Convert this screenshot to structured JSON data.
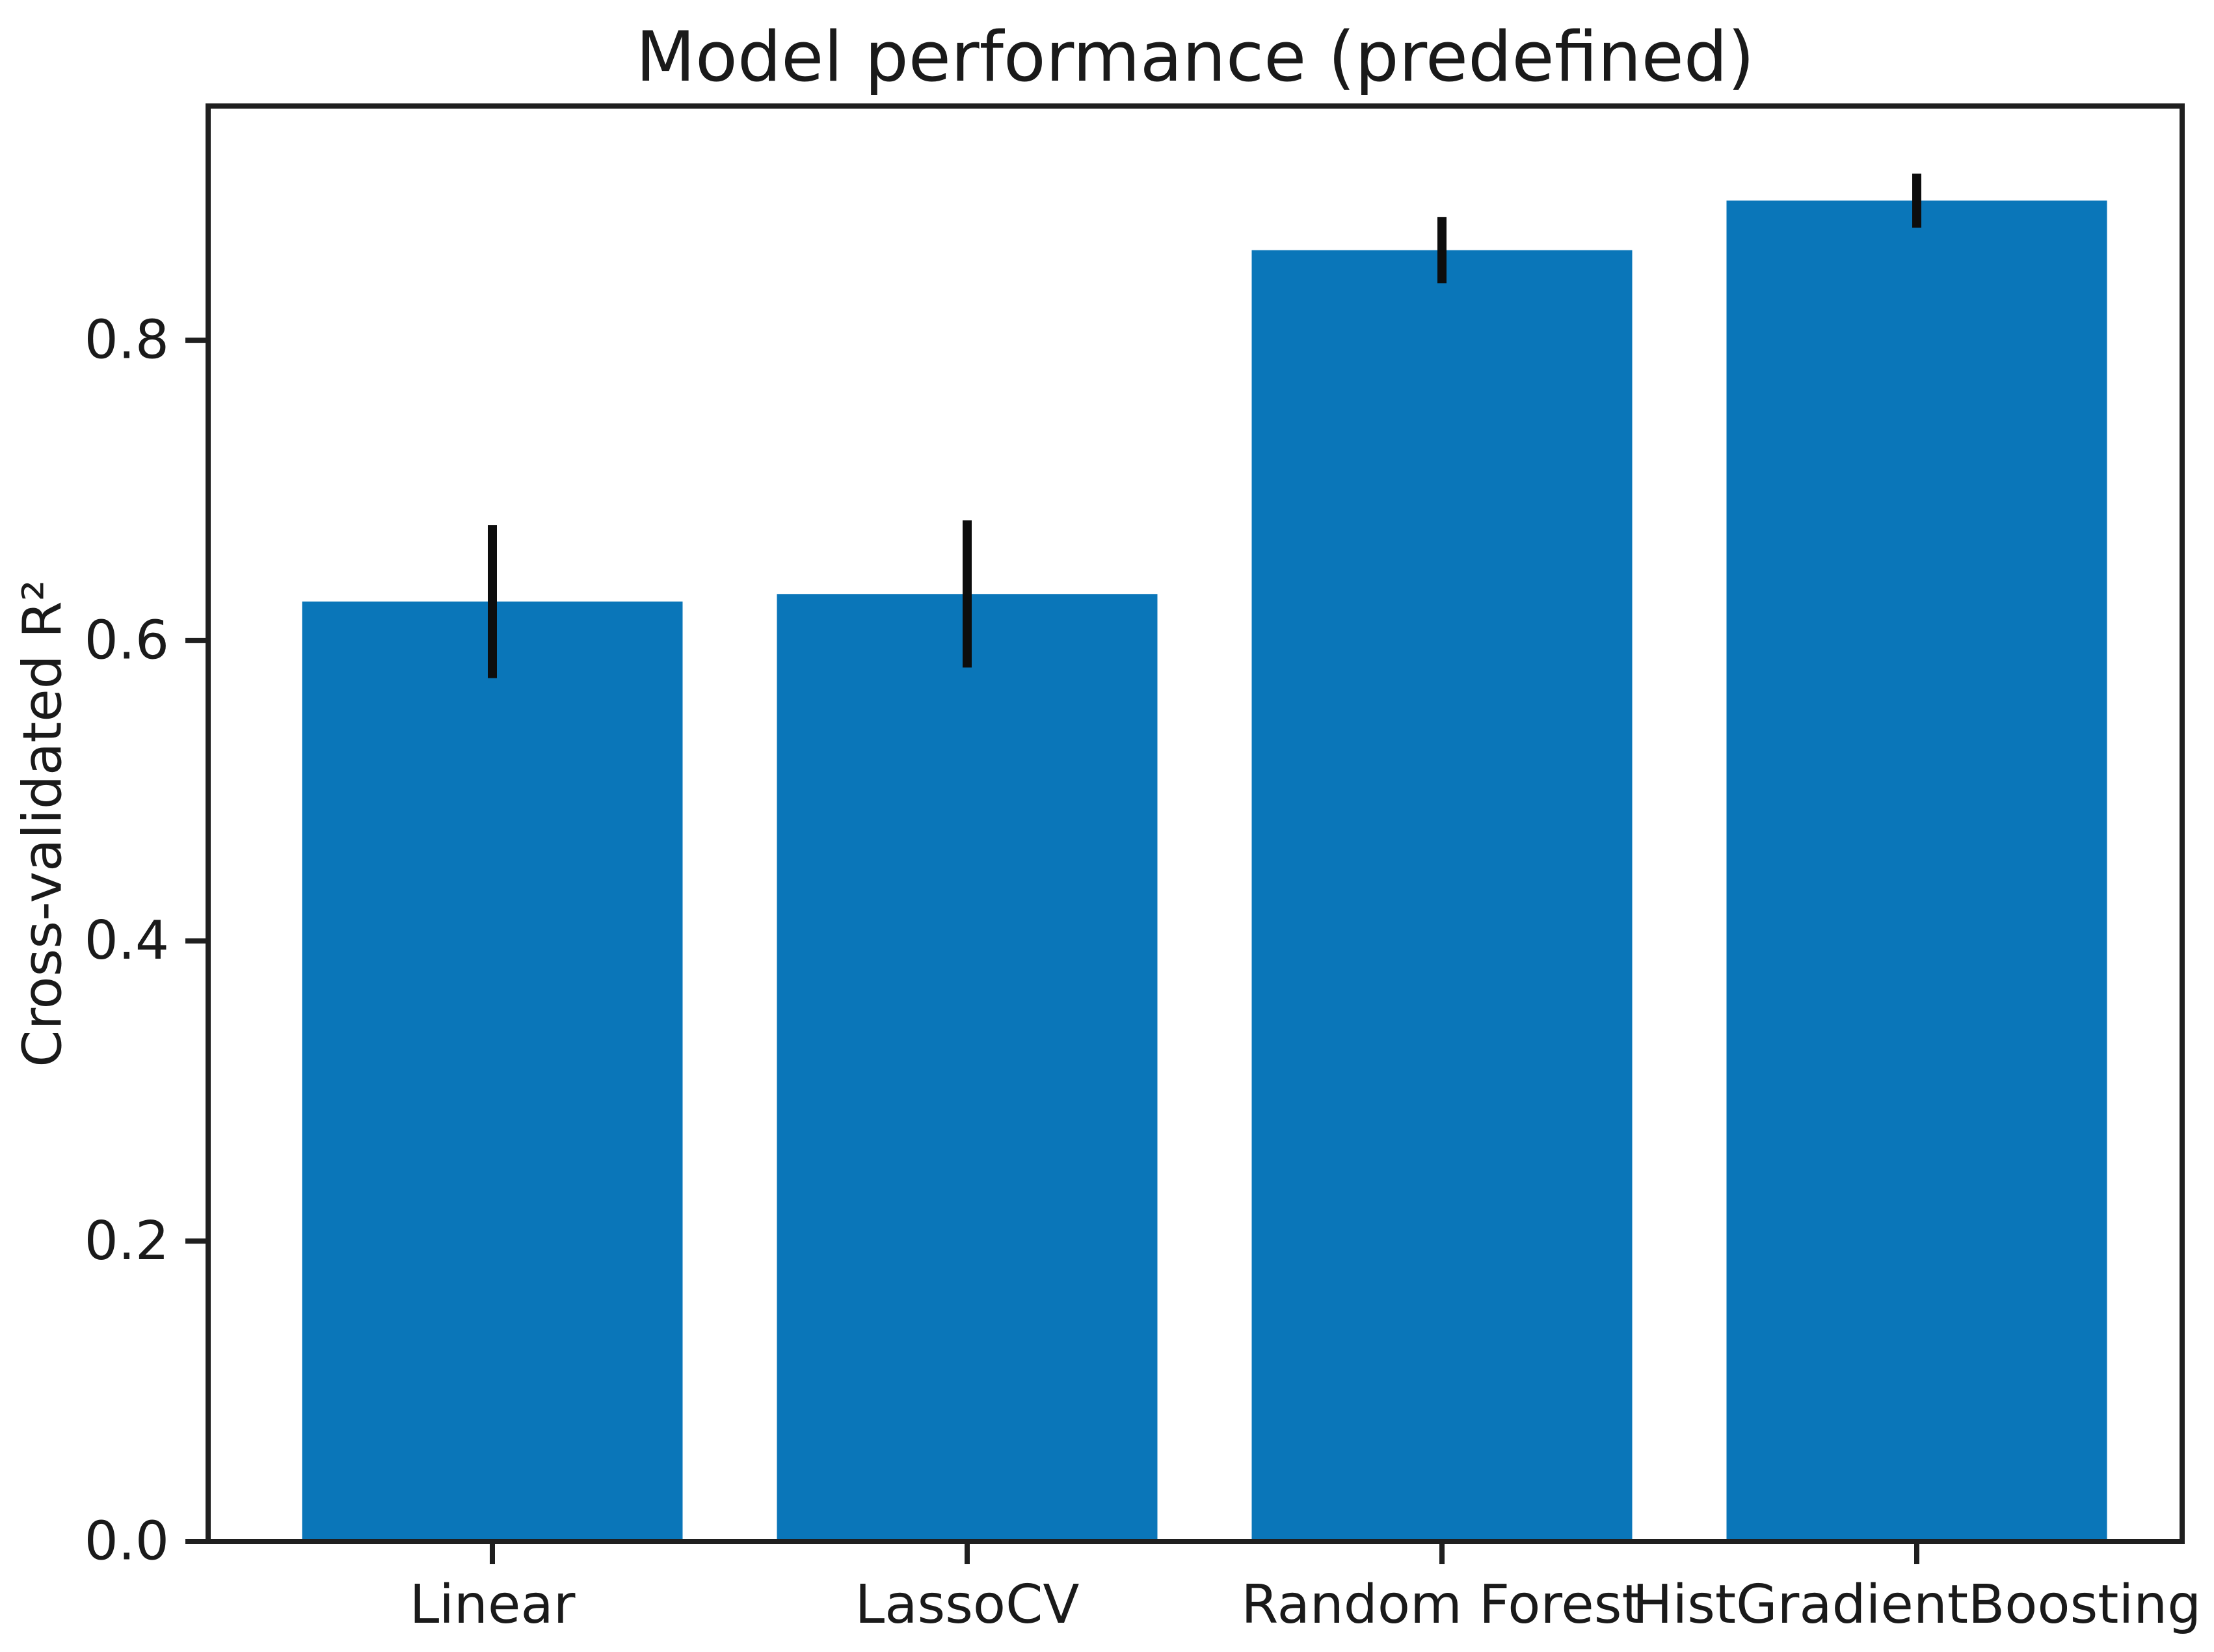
{
  "chart_data": {
    "type": "bar",
    "title": "Model performance (predefined)",
    "xlabel": "",
    "ylabel": "Cross-validated R²",
    "categories": [
      "Linear",
      "LassoCV",
      "Random Forest",
      "HistGradientBoosting"
    ],
    "values": [
      0.626,
      0.631,
      0.86,
      0.893
    ],
    "error_bars": [
      0.051,
      0.049,
      0.022,
      0.018
    ],
    "yticks": [
      0.0,
      0.2,
      0.4,
      0.6,
      0.8
    ],
    "ytick_labels": [
      "0.0",
      "0.2",
      "0.4",
      "0.6",
      "0.8"
    ],
    "ylim": [
      0,
      0.956
    ],
    "grid": false,
    "legend": null,
    "colors": {
      "bar": "#0a76b9",
      "error_bar": "#0d0d0d",
      "axis": "#1f1f1f",
      "text": "#1a1a1a",
      "background": "#ffffff"
    }
  }
}
